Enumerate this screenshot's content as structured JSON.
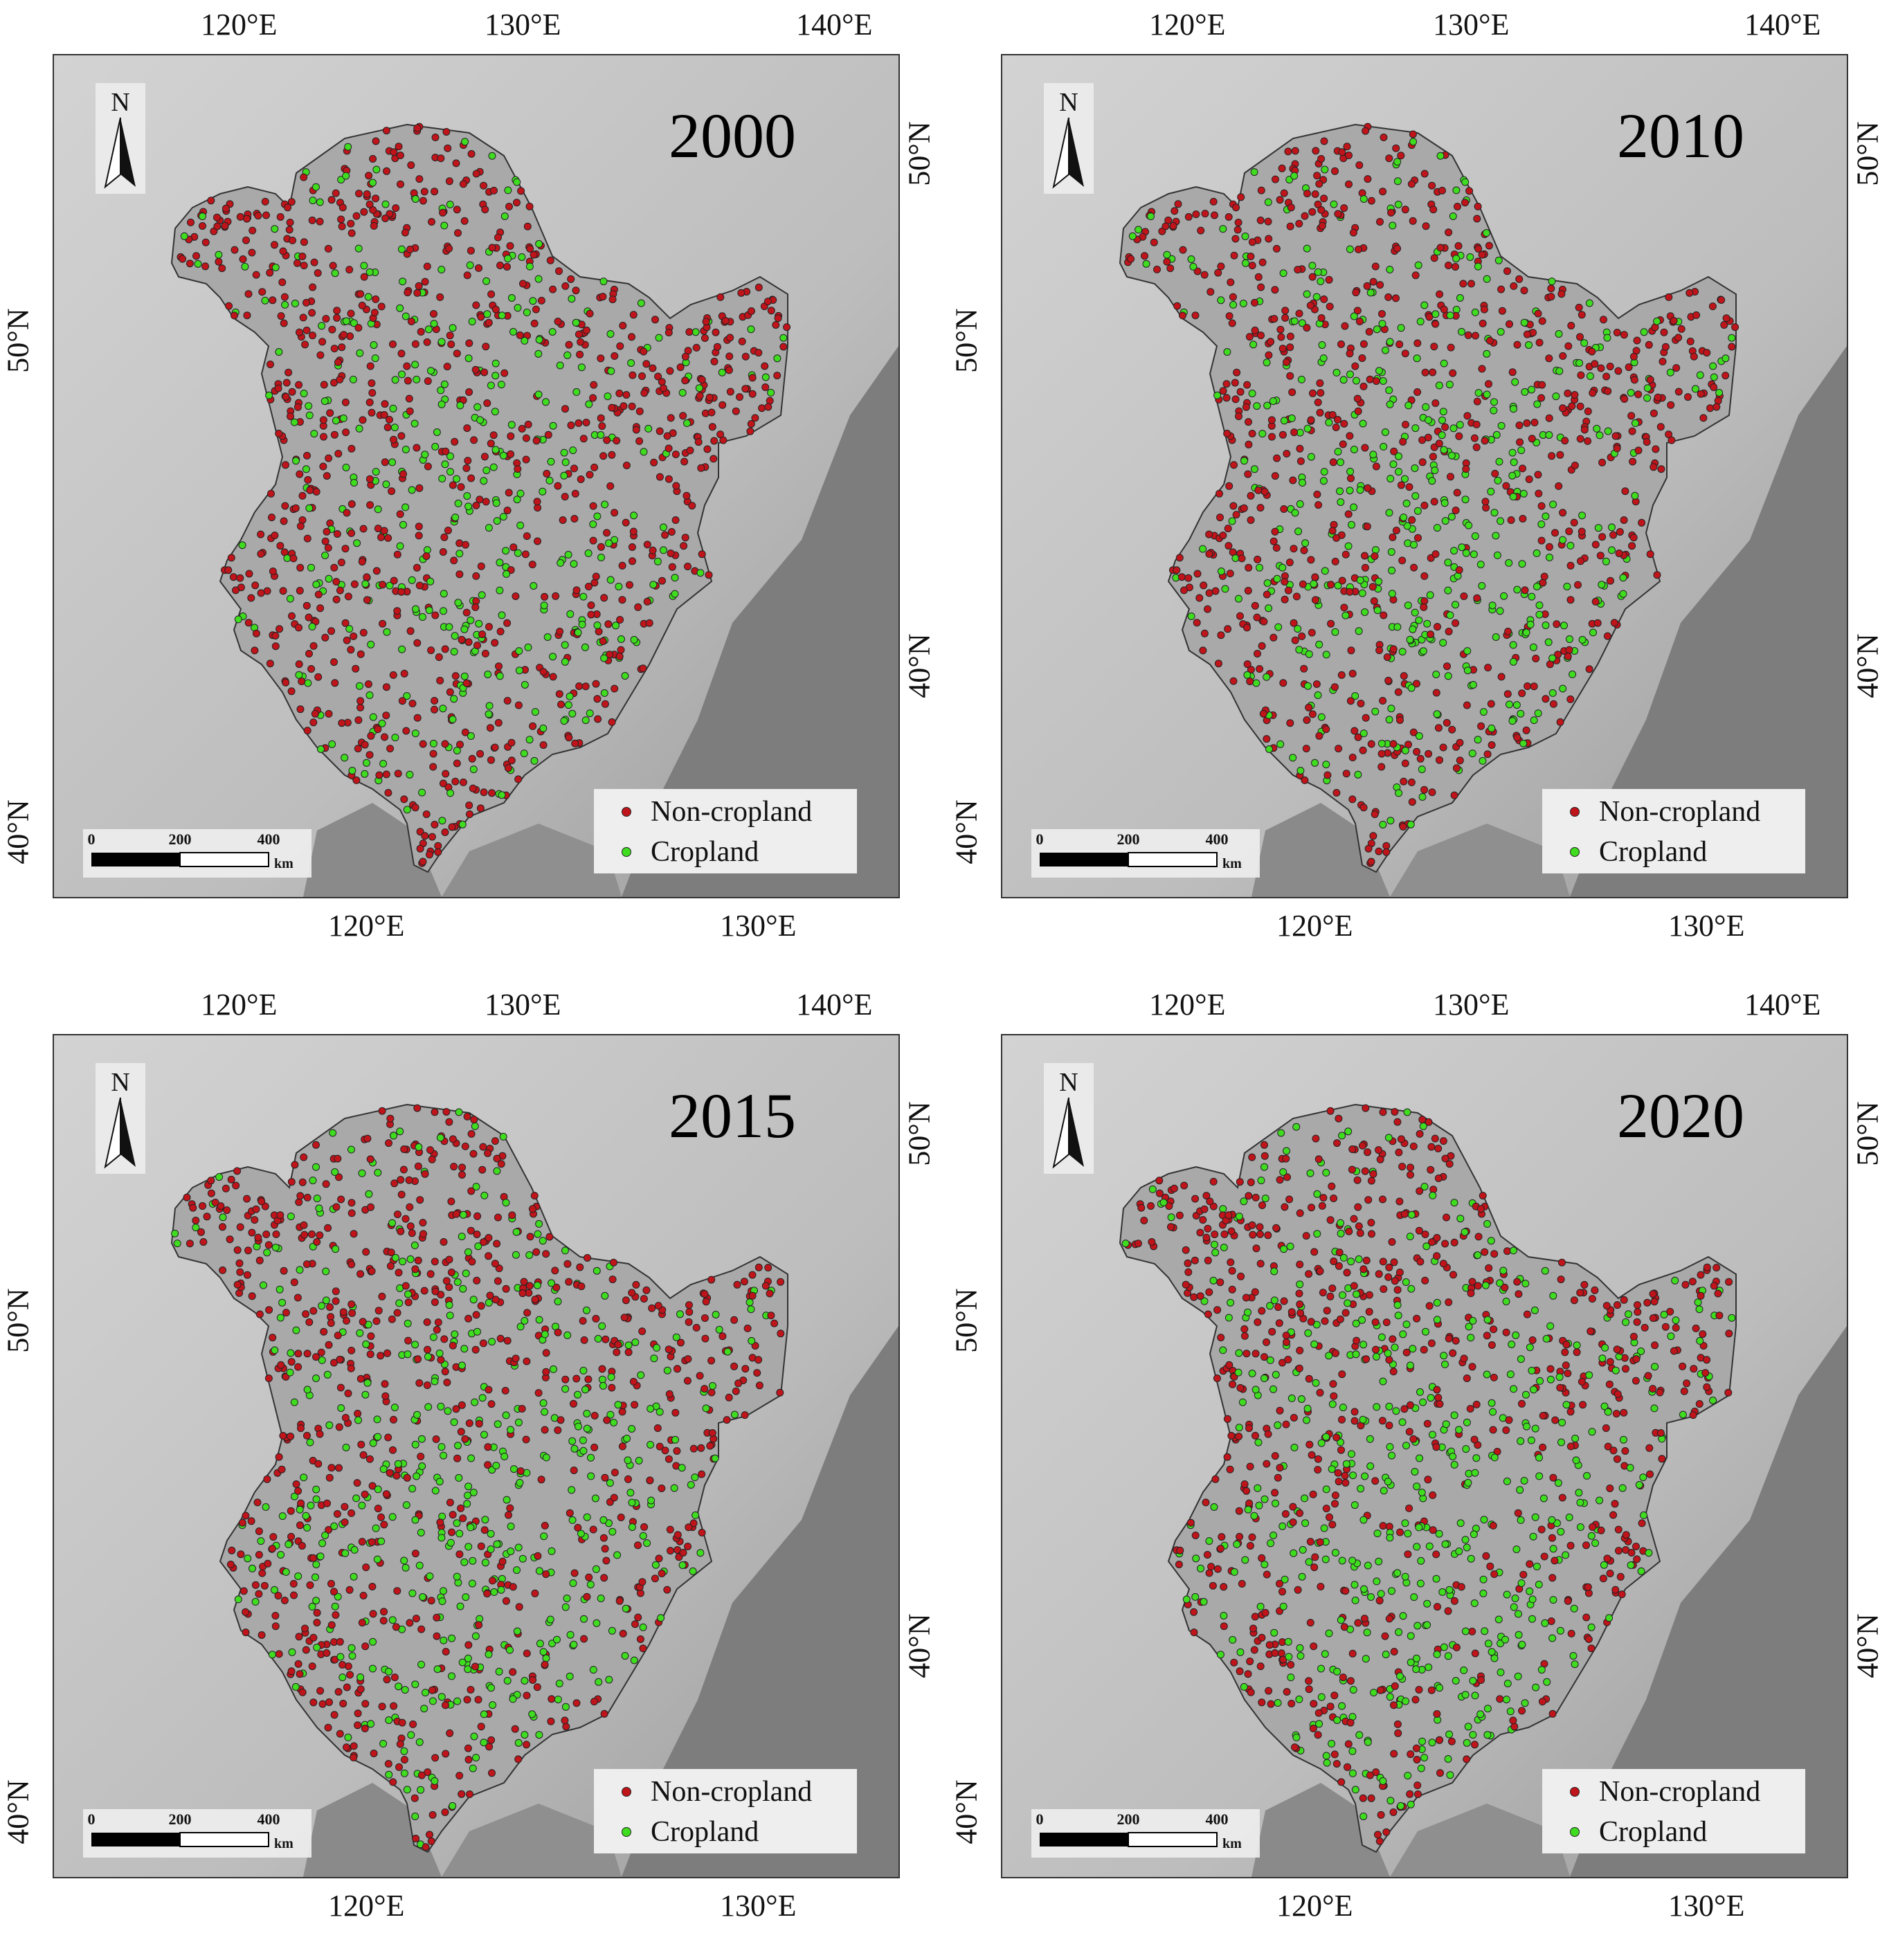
{
  "legend": {
    "non_cropland_label": "Non-cropland",
    "cropland_label": "Cropland",
    "non_cropland_color": "#c0141b",
    "cropland_color": "#3fdc20"
  },
  "north_arrow_label": "N",
  "scale_bar": {
    "ticks": [
      "0",
      "200",
      "400"
    ],
    "unit": "km"
  },
  "top_axis_labels": [
    "120°E",
    "130°E",
    "140°E"
  ],
  "bottom_axis_labels": [
    "120°E",
    "130°E"
  ],
  "left_axis_labels": [
    "50°N",
    "40°N"
  ],
  "right_axis_labels": [
    "50°N",
    "40°N"
  ],
  "panels": [
    {
      "year": "2000",
      "cropland_share": 0.28
    },
    {
      "year": "2010",
      "cropland_share": 0.34
    },
    {
      "year": "2015",
      "cropland_share": 0.36
    },
    {
      "year": "2020",
      "cropland_share": 0.38
    }
  ]
}
